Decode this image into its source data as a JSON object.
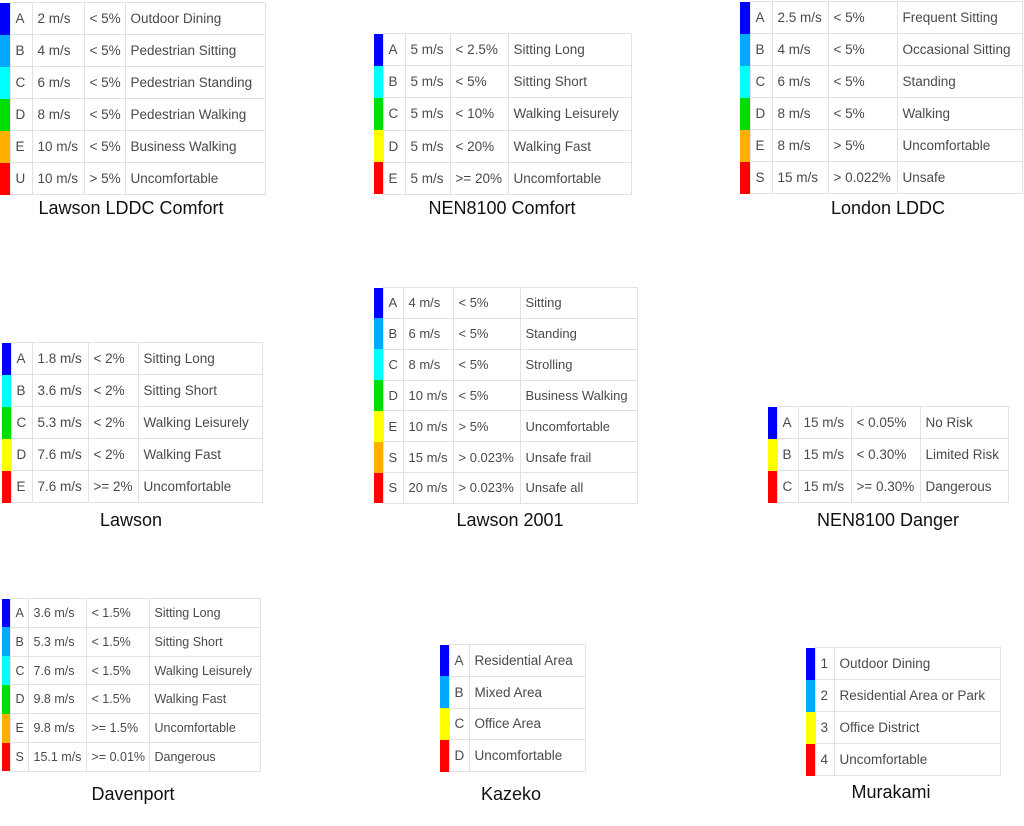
{
  "colors": {
    "blue": "#0000ff",
    "lightblue": "#00aaff",
    "cyan": "#00ffff",
    "green": "#00dd00",
    "orange": "#ffb000",
    "yellow": "#ffff00",
    "red": "#ff0000"
  },
  "legends": [
    {
      "title": "Lawson LDDC Comfort",
      "rows": [
        {
          "color": "blue",
          "label": "A",
          "speed": "2 m/s",
          "freq": "< 5%",
          "desc": "Outdoor Dining"
        },
        {
          "color": "lightblue",
          "label": "B",
          "speed": "4 m/s",
          "freq": "< 5%",
          "desc": "Pedestrian Sitting"
        },
        {
          "color": "cyan",
          "label": "C",
          "speed": "6 m/s",
          "freq": "< 5%",
          "desc": "Pedestrian Standing"
        },
        {
          "color": "green",
          "label": "D",
          "speed": "8 m/s",
          "freq": "< 5%",
          "desc": "Pedestrian Walking"
        },
        {
          "color": "orange",
          "label": "E",
          "speed": "10 m/s",
          "freq": "< 5%",
          "desc": "Business Walking"
        },
        {
          "color": "red",
          "label": "U",
          "speed": "10 m/s",
          "freq": "> 5%",
          "desc": "Uncomfortable"
        }
      ]
    },
    {
      "title": "NEN8100 Comfort",
      "rows": [
        {
          "color": "blue",
          "label": "A",
          "speed": "5 m/s",
          "freq": "< 2.5%",
          "desc": "Sitting Long"
        },
        {
          "color": "cyan",
          "label": "B",
          "speed": "5 m/s",
          "freq": "< 5%",
          "desc": "Sitting Short"
        },
        {
          "color": "green",
          "label": "C",
          "speed": "5 m/s",
          "freq": "< 10%",
          "desc": "Walking Leisurely"
        },
        {
          "color": "yellow",
          "label": "D",
          "speed": "5 m/s",
          "freq": "< 20%",
          "desc": "Walking Fast"
        },
        {
          "color": "red",
          "label": "E",
          "speed": "5 m/s",
          "freq": ">= 20%",
          "desc": "Uncomfortable"
        }
      ]
    },
    {
      "title": "London LDDC",
      "rows": [
        {
          "color": "blue",
          "label": "A",
          "speed": "2.5 m/s",
          "freq": "< 5%",
          "desc": "Frequent Sitting"
        },
        {
          "color": "lightblue",
          "label": "B",
          "speed": "4 m/s",
          "freq": "< 5%",
          "desc": "Occasional Sitting"
        },
        {
          "color": "cyan",
          "label": "C",
          "speed": "6 m/s",
          "freq": "< 5%",
          "desc": "Standing"
        },
        {
          "color": "green",
          "label": "D",
          "speed": "8 m/s",
          "freq": "< 5%",
          "desc": "Walking"
        },
        {
          "color": "orange",
          "label": "E",
          "speed": "8 m/s",
          "freq": "> 5%",
          "desc": "Uncomfortable"
        },
        {
          "color": "red",
          "label": "S",
          "speed": "15 m/s",
          "freq": "> 0.022%",
          "desc": "Unsafe"
        }
      ]
    },
    {
      "title": "Lawson",
      "rows": [
        {
          "color": "blue",
          "label": "A",
          "speed": "1.8 m/s",
          "freq": "< 2%",
          "desc": "Sitting Long"
        },
        {
          "color": "cyan",
          "label": "B",
          "speed": "3.6 m/s",
          "freq": "< 2%",
          "desc": "Sitting Short"
        },
        {
          "color": "green",
          "label": "C",
          "speed": "5.3 m/s",
          "freq": "< 2%",
          "desc": "Walking Leisurely"
        },
        {
          "color": "yellow",
          "label": "D",
          "speed": "7.6 m/s",
          "freq": "< 2%",
          "desc": "Walking Fast"
        },
        {
          "color": "red",
          "label": "E",
          "speed": "7.6 m/s",
          "freq": ">= 2%",
          "desc": "Uncomfortable"
        }
      ]
    },
    {
      "title": "Lawson 2001",
      "rows": [
        {
          "color": "blue",
          "label": "A",
          "speed": "4 m/s",
          "freq": "< 5%",
          "desc": "Sitting"
        },
        {
          "color": "lightblue",
          "label": "B",
          "speed": "6 m/s",
          "freq": "< 5%",
          "desc": "Standing"
        },
        {
          "color": "cyan",
          "label": "C",
          "speed": "8 m/s",
          "freq": "< 5%",
          "desc": "Strolling"
        },
        {
          "color": "green",
          "label": "D",
          "speed": "10 m/s",
          "freq": "< 5%",
          "desc": "Business Walking"
        },
        {
          "color": "yellow",
          "label": "E",
          "speed": "10 m/s",
          "freq": "> 5%",
          "desc": "Uncomfortable"
        },
        {
          "color": "orange",
          "label": "S",
          "speed": "15 m/s",
          "freq": "> 0.023%",
          "desc": "Unsafe frail"
        },
        {
          "color": "red",
          "label": "S",
          "speed": "20 m/s",
          "freq": "> 0.023%",
          "desc": "Unsafe all"
        }
      ]
    },
    {
      "title": "NEN8100 Danger",
      "rows": [
        {
          "color": "blue",
          "label": "A",
          "speed": "15 m/s",
          "freq": "< 0.05%",
          "desc": "No Risk"
        },
        {
          "color": "yellow",
          "label": "B",
          "speed": "15 m/s",
          "freq": "< 0.30%",
          "desc": "Limited Risk"
        },
        {
          "color": "red",
          "label": "C",
          "speed": "15 m/s",
          "freq": ">= 0.30%",
          "desc": "Dangerous"
        }
      ]
    },
    {
      "title": "Davenport",
      "rows": [
        {
          "color": "blue",
          "label": "A",
          "speed": "3.6 m/s",
          "freq": "< 1.5%",
          "desc": "Sitting Long"
        },
        {
          "color": "lightblue",
          "label": "B",
          "speed": "5.3 m/s",
          "freq": "< 1.5%",
          "desc": "Sitting Short"
        },
        {
          "color": "cyan",
          "label": "C",
          "speed": "7.6 m/s",
          "freq": "< 1.5%",
          "desc": "Walking Leisurely"
        },
        {
          "color": "green",
          "label": "D",
          "speed": "9.8 m/s",
          "freq": "< 1.5%",
          "desc": "Walking Fast"
        },
        {
          "color": "orange",
          "label": "E",
          "speed": "9.8 m/s",
          "freq": ">= 1.5%",
          "desc": "Uncomfortable"
        },
        {
          "color": "red",
          "label": "S",
          "speed": "15.1 m/s",
          "freq": ">= 0.01%",
          "desc": "Dangerous"
        }
      ]
    },
    {
      "title": "Kazeko",
      "rows": [
        {
          "color": "blue",
          "label": "A",
          "desc": "Residential Area"
        },
        {
          "color": "lightblue",
          "label": "B",
          "desc": "Mixed Area"
        },
        {
          "color": "yellow",
          "label": "C",
          "desc": "Office Area"
        },
        {
          "color": "red",
          "label": "D",
          "desc": "Uncomfortable"
        }
      ]
    },
    {
      "title": "Murakami",
      "rows": [
        {
          "color": "blue",
          "label": "1",
          "desc": "Outdoor Dining"
        },
        {
          "color": "lightblue",
          "label": "2",
          "desc": "Residential Area or Park"
        },
        {
          "color": "yellow",
          "label": "3",
          "desc": "Office District"
        },
        {
          "color": "red",
          "label": "4",
          "desc": "Uncomfortable"
        }
      ]
    }
  ]
}
